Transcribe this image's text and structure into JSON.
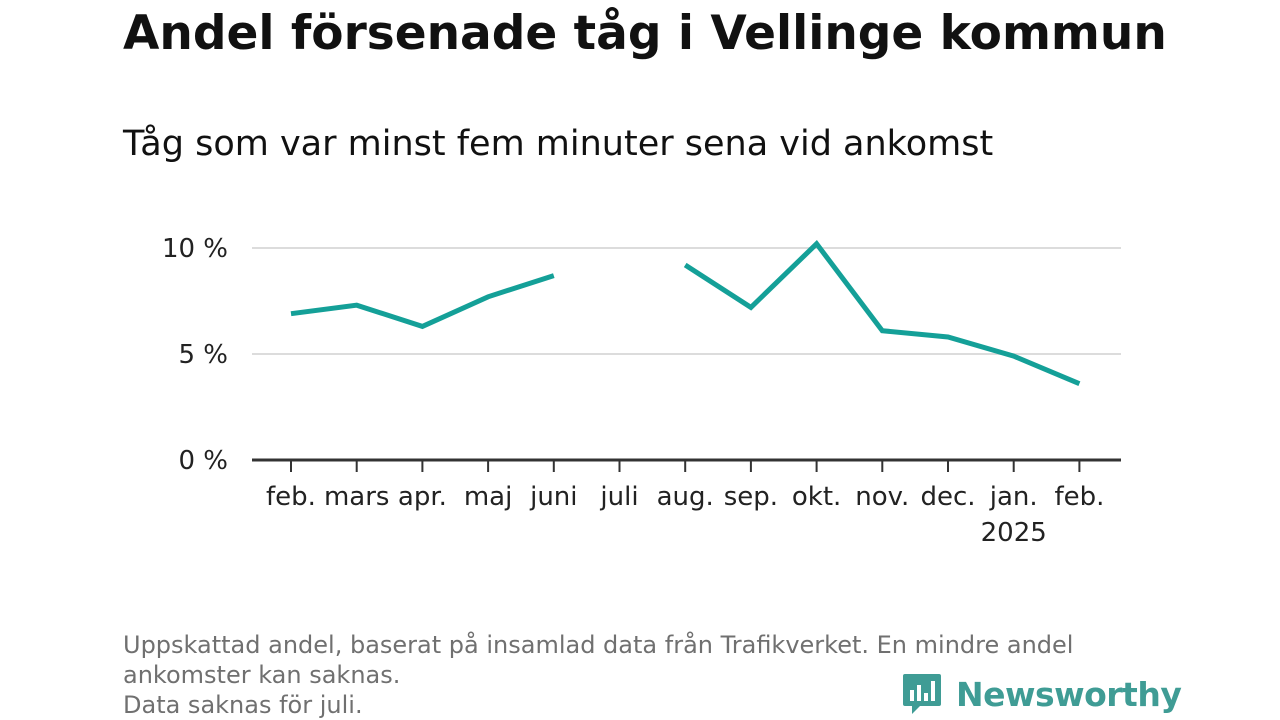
{
  "title": "Andel försenade tåg i Vellinge kommun",
  "subtitle": "Tåg som var minst fem minuter sena vid ankomst",
  "chart_data": {
    "type": "line",
    "categories": [
      "feb.",
      "mars",
      "apr.",
      "maj",
      "juni",
      "juli",
      "aug.",
      "sep.",
      "okt.",
      "nov.",
      "dec.",
      "jan.",
      "feb."
    ],
    "year_label": "2025",
    "year_label_under": "jan.",
    "series": [
      {
        "values": [
          6.9,
          7.3,
          6.3,
          7.7,
          8.7,
          null,
          9.2,
          7.2,
          10.2,
          6.1,
          5.8,
          4.9,
          3.6
        ]
      }
    ],
    "ylim": [
      0,
      10
    ],
    "yticks": [
      0,
      5,
      10
    ],
    "ytick_labels": [
      "0 %",
      "5 %",
      "10 %"
    ],
    "grid": true,
    "line_color": "#14a098"
  },
  "footer": {
    "line1": "Uppskattad andel, baserat på insamlad data från Trafikverket. En mindre andel",
    "line2": "ankomster kan saknas.",
    "line3": "Data saknas för juli."
  },
  "brand": {
    "name": "Newsworthy",
    "icon": "bar-chart-speech-bubble-icon",
    "color": "#3f9c95"
  }
}
